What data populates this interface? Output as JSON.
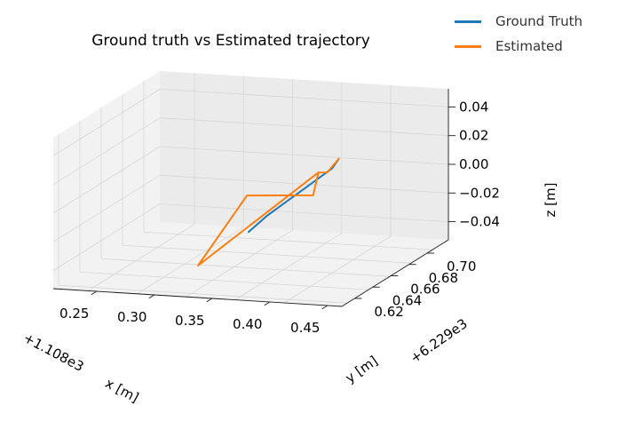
{
  "chart_data": {
    "type": "line",
    "projection": "3d",
    "title": "Ground truth vs Estimated trajectory",
    "xlabel": "x [m]",
    "ylabel": "y [m]",
    "zlabel": "z [m]",
    "x_offset_label": "+1.108e3",
    "y_offset_label": "+6.229e3",
    "x_ticks": [
      "0.25",
      "0.30",
      "0.35",
      "0.40",
      "0.45"
    ],
    "y_ticks": [
      "0.62",
      "0.64",
      "0.66",
      "0.68",
      "0.70"
    ],
    "z_ticks": [
      "0.04",
      "0.02",
      "0.00",
      "−0.02",
      "−0.04"
    ],
    "xlim": [
      0.23,
      0.47
    ],
    "ylim": [
      0.61,
      0.72
    ],
    "zlim": [
      -0.055,
      0.055
    ],
    "grid": true,
    "legend_position": "top-right",
    "series": [
      {
        "name": "Ground Truth",
        "color": "#1f77b4",
        "x": [
          0.27,
          0.285,
          0.3,
          0.33,
          0.36,
          0.39,
          0.42
        ],
        "y": [
          0.685,
          0.685,
          0.684,
          0.682,
          0.68,
          0.678,
          0.676
        ],
        "z": [
          0.008,
          0.004,
          0.002,
          -0.002,
          -0.006,
          -0.01,
          -0.016
        ]
      },
      {
        "name": "Estimated",
        "color": "#ff7f0e",
        "x": [
          0.27,
          0.29,
          0.31,
          0.41,
          0.4,
          0.44,
          0.31
        ],
        "y": [
          0.685,
          0.684,
          0.684,
          0.655,
          0.672,
          0.704,
          0.684
        ],
        "z": [
          0.008,
          0.002,
          0.006,
          -0.045,
          0.006,
          0.018,
          0.006
        ]
      }
    ]
  }
}
